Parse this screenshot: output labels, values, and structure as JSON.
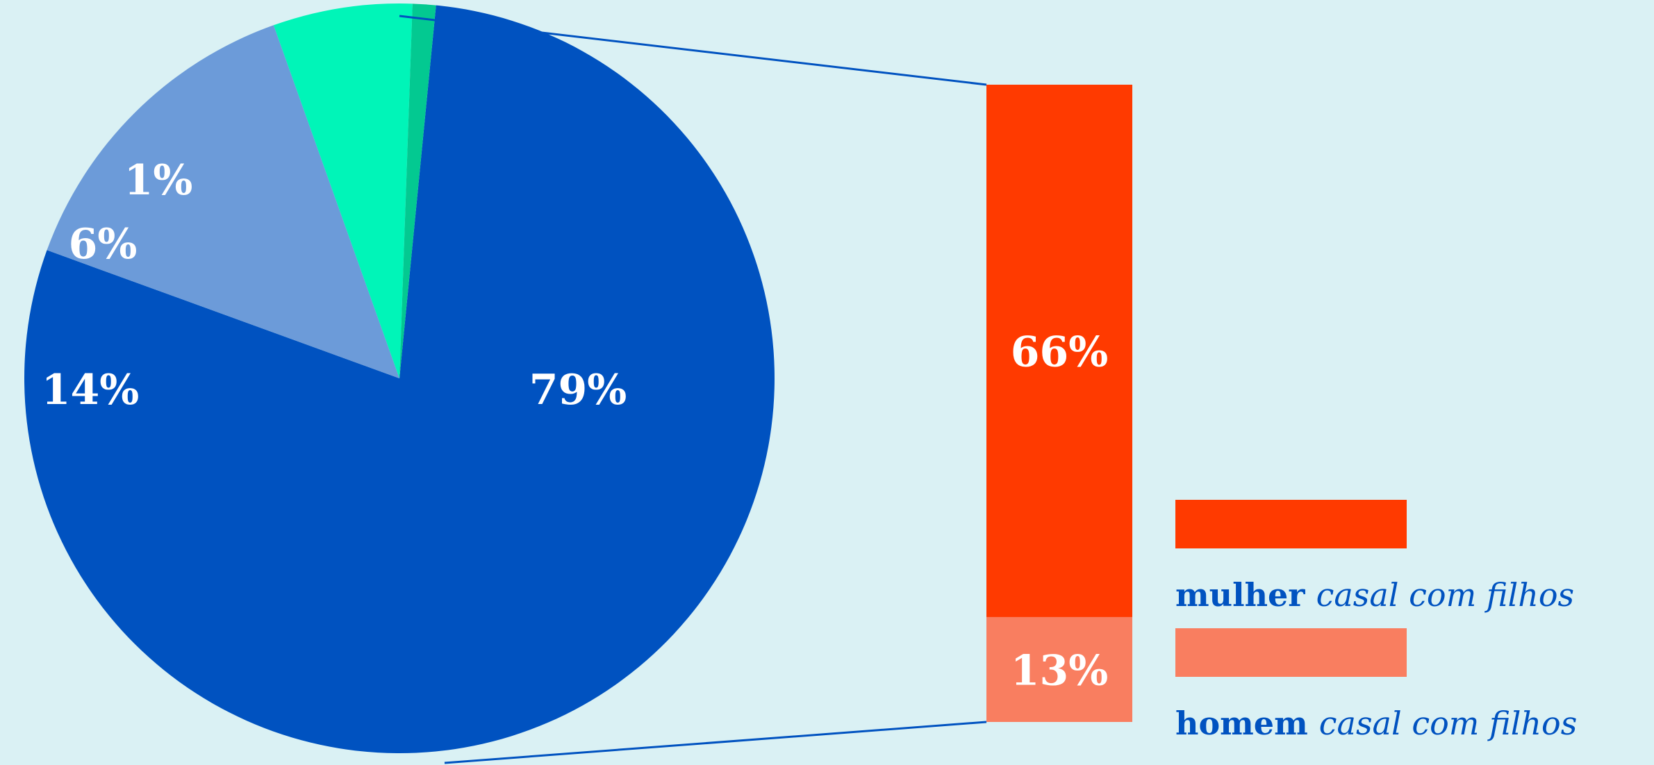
{
  "chart_data": {
    "type": "bar-of-pie",
    "pie": {
      "slices": [
        {
          "label": "79%",
          "value": 79,
          "color": "#0052c0"
        },
        {
          "label": "14%",
          "value": 14,
          "color": "#6c9bd9"
        },
        {
          "label": "6%",
          "value": 6,
          "color": "#00f5b8"
        },
        {
          "label": "1%",
          "value": 1,
          "color": "#03c991"
        }
      ]
    },
    "bar": {
      "segments": [
        {
          "label": "66%",
          "value": 66,
          "color": "#ff3a00"
        },
        {
          "label": "13%",
          "value": 13,
          "color": "#f97e60"
        }
      ]
    },
    "legend": [
      {
        "strong": "mulher",
        "soft": "casal com filhos",
        "color": "#ff3a00"
      },
      {
        "strong": "homem",
        "soft": "casal com filhos",
        "color": "#f97e60"
      }
    ],
    "connector_color": "#0052c0"
  }
}
